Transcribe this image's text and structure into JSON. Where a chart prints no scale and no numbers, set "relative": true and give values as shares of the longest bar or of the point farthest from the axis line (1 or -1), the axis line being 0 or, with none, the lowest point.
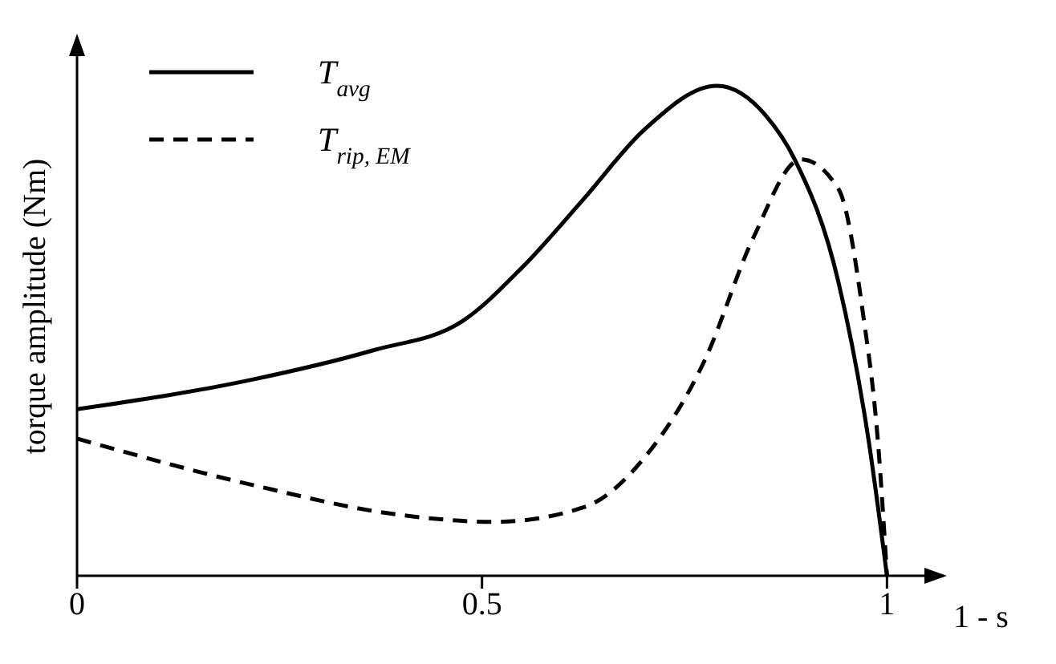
{
  "chart_data": {
    "type": "line",
    "relative": true,
    "ylabel": "torque amplitude (Nm)",
    "xlabel": "1 - s",
    "xlim": [
      0,
      1.07
    ],
    "xticks": [
      0,
      0.5,
      1
    ],
    "legend": "top left",
    "marker": "none",
    "grid": false,
    "series": [
      {
        "name": "T$_{avg}$",
        "color": "#000000",
        "line_style": "solid",
        "x": [
          0,
          0.215,
          0.365,
          0.476,
          0.55,
          0.626,
          0.7,
          0.79,
          0.85,
          0.886,
          0.94,
          0.977,
          1
        ],
        "values": [
          0.34,
          0.4,
          0.46,
          0.52,
          0.63,
          0.77,
          0.91,
          1,
          0.94,
          0.85,
          0.6,
          0.28,
          0
        ]
      },
      {
        "name": "T$_{rip, EM}$",
        "color": "#000000",
        "line_style": "dashed",
        "x": [
          0,
          0.215,
          0.4,
          0.515,
          0.626,
          0.7,
          0.775,
          0.835,
          0.894,
          0.94,
          0.97,
          0.99,
          1
        ],
        "values": [
          0.28,
          0.186,
          0.124,
          0.11,
          0.14,
          0.24,
          0.44,
          0.69,
          0.85,
          0.79,
          0.54,
          0.25,
          0
        ]
      }
    ]
  }
}
